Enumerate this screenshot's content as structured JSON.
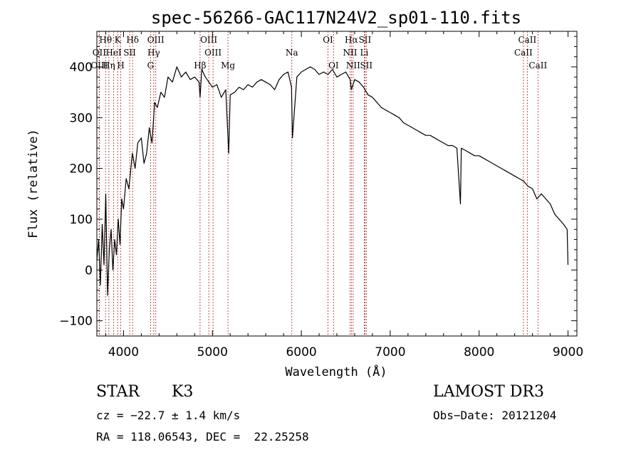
{
  "chart_data": {
    "type": "line",
    "title": "spec-56266-GAC117N24V2_sp01-110.fits",
    "xlabel": "Wavelength (Å)",
    "ylabel": "Flux (relative)",
    "xlim": [
      3700,
      9100
    ],
    "ylim": [
      -130,
      470
    ],
    "x_ticks": [
      4000,
      5000,
      6000,
      7000,
      8000,
      9000
    ],
    "y_ticks": [
      -100,
      0,
      100,
      200,
      300,
      400
    ],
    "grid": false,
    "line_color": "#000000",
    "marker_color": "#b22222",
    "series": [
      {
        "x": [
          3700,
          3720,
          3740,
          3760,
          3780,
          3800,
          3820,
          3840,
          3860,
          3880,
          3900,
          3920,
          3940,
          3960,
          3980,
          4000,
          4030,
          4060,
          4100,
          4130,
          4160,
          4200,
          4230,
          4260,
          4290,
          4320,
          4350,
          4380,
          4420,
          4460,
          4500,
          4550,
          4600,
          4650,
          4700,
          4750,
          4800,
          4850,
          4861,
          4880,
          4920,
          4960,
          5000,
          5050,
          5100,
          5150,
          5183,
          5200,
          5250,
          5300,
          5350,
          5400,
          5450,
          5500,
          5550,
          5600,
          5650,
          5700,
          5750,
          5800,
          5850,
          5890,
          5900,
          5950,
          6000,
          6050,
          6100,
          6150,
          6200,
          6250,
          6300,
          6350,
          6400,
          6450,
          6500,
          6550,
          6563,
          6600,
          6650,
          6700,
          6750,
          6800,
          6850,
          6900,
          6950,
          7000,
          7050,
          7100,
          7150,
          7200,
          7250,
          7300,
          7350,
          7400,
          7450,
          7500,
          7550,
          7600,
          7650,
          7700,
          7750,
          7790,
          7800,
          7850,
          7900,
          7950,
          8000,
          8050,
          8100,
          8150,
          8200,
          8250,
          8300,
          8350,
          8400,
          8450,
          8500,
          8550,
          8600,
          8650,
          8700,
          8750,
          8800,
          8850,
          8900,
          8950,
          8990,
          9000
        ],
        "y": [
          20,
          60,
          -30,
          90,
          10,
          150,
          -50,
          40,
          80,
          0,
          60,
          30,
          100,
          50,
          140,
          120,
          180,
          160,
          230,
          200,
          250,
          260,
          210,
          230,
          280,
          250,
          330,
          320,
          350,
          340,
          380,
          370,
          400,
          380,
          390,
          375,
          380,
          370,
          340,
          395,
          380,
          370,
          360,
          365,
          340,
          355,
          230,
          345,
          350,
          360,
          355,
          365,
          360,
          370,
          375,
          370,
          365,
          355,
          375,
          385,
          390,
          360,
          260,
          380,
          390,
          395,
          400,
          395,
          385,
          390,
          385,
          395,
          380,
          385,
          390,
          375,
          355,
          375,
          370,
          360,
          345,
          340,
          330,
          320,
          315,
          310,
          305,
          300,
          290,
          285,
          280,
          275,
          270,
          265,
          265,
          260,
          255,
          250,
          245,
          245,
          240,
          130,
          240,
          235,
          230,
          225,
          225,
          220,
          215,
          210,
          205,
          200,
          195,
          190,
          185,
          180,
          175,
          165,
          160,
          140,
          150,
          140,
          130,
          110,
          100,
          90,
          80,
          10
        ]
      }
    ],
    "line_markers": [
      {
        "label": "Hθ",
        "x": 3798,
        "row": 0
      },
      {
        "label": "OII",
        "x": 3727,
        "row": 1
      },
      {
        "label": "OIII",
        "x": 3727,
        "row": 2
      },
      {
        "label": "K",
        "x": 3934,
        "row": 0
      },
      {
        "label": "HeI",
        "x": 3889,
        "row": 1
      },
      {
        "label": "Hη",
        "x": 3835,
        "row": 2
      },
      {
        "label": "SII",
        "x": 4069,
        "row": 1
      },
      {
        "label": "H",
        "x": 3969,
        "row": 2
      },
      {
        "label": "Hδ",
        "x": 4102,
        "row": 0
      },
      {
        "label": "OIII",
        "x": 4363,
        "row": 0
      },
      {
        "label": "Hγ",
        "x": 4340,
        "row": 1
      },
      {
        "label": "G",
        "x": 4304,
        "row": 2
      },
      {
        "label": "Hβ",
        "x": 4861,
        "row": 2
      },
      {
        "label": "OIII",
        "x": 4959,
        "row": 0
      },
      {
        "label": "OIII",
        "x": 5007,
        "row": 1
      },
      {
        "label": "Mg",
        "x": 5175,
        "row": 2
      },
      {
        "label": "Na",
        "x": 5893,
        "row": 1
      },
      {
        "label": "OI",
        "x": 6300,
        "row": 0
      },
      {
        "label": "OI",
        "x": 6363,
        "row": 2
      },
      {
        "label": "Hα",
        "x": 6563,
        "row": 0
      },
      {
        "label": "NII",
        "x": 6548,
        "row": 1
      },
      {
        "label": "NII",
        "x": 6583,
        "row": 2
      },
      {
        "label": "SII",
        "x": 6716,
        "row": 0
      },
      {
        "label": "Li",
        "x": 6708,
        "row": 1
      },
      {
        "label": "SII",
        "x": 6731,
        "row": 2
      },
      {
        "label": "CaII",
        "x": 8542,
        "row": 0
      },
      {
        "label": "CaII",
        "x": 8498,
        "row": 1
      },
      {
        "label": "CaII",
        "x": 8662,
        "row": 2
      }
    ]
  },
  "info": {
    "object_class": "STAR",
    "subclass": "K3",
    "survey": "LAMOST DR3",
    "cz": "cz = −22.7 ± 1.4 km/s",
    "obs_date": "Obs−Date: 20121204",
    "coords": "RA = 118.06543, DEC =  22.25258"
  }
}
